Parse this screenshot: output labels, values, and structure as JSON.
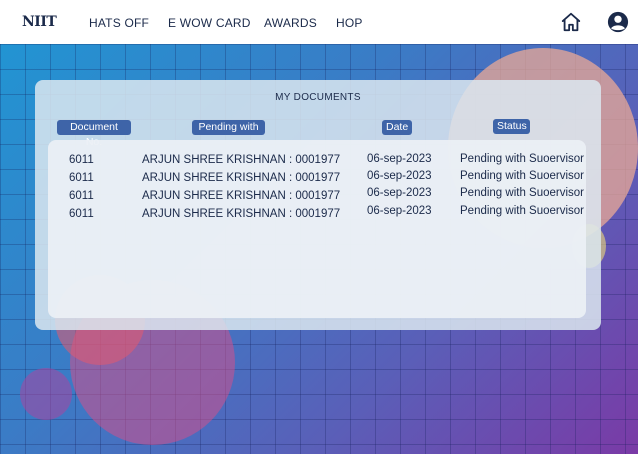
{
  "header": {
    "logo": "NIIT",
    "nav": [
      "HATS OFF",
      "E WOW CARD",
      "AWARDS",
      "HOP"
    ],
    "icons": [
      "home-icon",
      "account-icon"
    ]
  },
  "documents": {
    "title": "MY DOCUMENTS",
    "columns": [
      "Document No.",
      "Pending with",
      "Date",
      "Status"
    ],
    "rows": [
      {
        "doc_no": "6011",
        "pending_with": "ARJUN SHREE KRISHNAN : 0001977",
        "date": "06-sep-2023",
        "status": "Pending with Suoervisor"
      },
      {
        "doc_no": "6011",
        "pending_with": "ARJUN SHREE KRISHNAN : 0001977",
        "date": "06-sep-2023",
        "status": "Pending with Suoervisor"
      },
      {
        "doc_no": "6011",
        "pending_with": "ARJUN SHREE KRISHNAN : 0001977",
        "date": "06-sep-2023",
        "status": "Pending with Suoervisor"
      },
      {
        "doc_no": "6011",
        "pending_with": "ARJUN SHREE KRISHNAN : 0001977",
        "date": "06-sep-2023",
        "status": "Pending with Suoervisor"
      }
    ]
  },
  "colors": {
    "header_bg": "#ffffff",
    "text": "#1b2a4a",
    "column_header_bg": "#3e64a8"
  }
}
